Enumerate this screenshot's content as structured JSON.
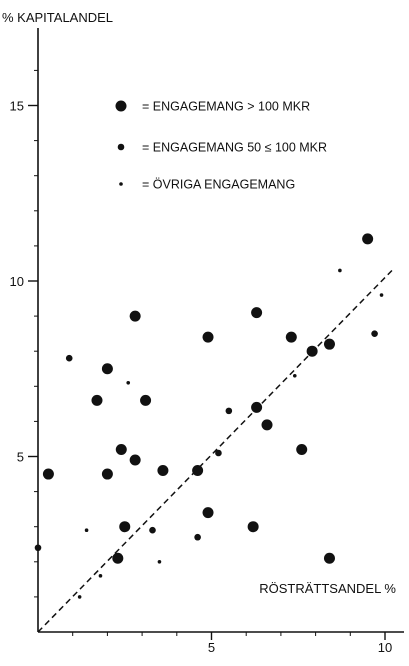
{
  "chart_data": {
    "type": "scatter",
    "ylabel": "% KAPITALANDEL",
    "xlabel": "RÖSTRÄTTSANDEL %",
    "xlim": [
      0,
      10.2
    ],
    "ylim": [
      0,
      17
    ],
    "x_ticks": [
      5,
      10
    ],
    "y_ticks": [
      5,
      10,
      15
    ],
    "grid": false,
    "reference_line": {
      "style": "dashed",
      "from": [
        0,
        0
      ],
      "to": [
        10.2,
        10.3
      ]
    },
    "legend": {
      "placement": "top-right",
      "entries": [
        {
          "size": "large",
          "label": "= ENGAGEMANG > 100 MKR"
        },
        {
          "size": "medium",
          "label": "= ENGAGEMANG 50 ≤ 100 MKR"
        },
        {
          "size": "small",
          "label": "= ÖVRIGA ENGAGEMANG"
        }
      ]
    },
    "series": [
      {
        "size": "large",
        "points": [
          [
            9.5,
            11.2
          ],
          [
            6.3,
            9.1
          ],
          [
            2.8,
            9.0
          ],
          [
            7.3,
            8.4
          ],
          [
            4.9,
            8.4
          ],
          [
            2.0,
            7.5
          ],
          [
            7.9,
            8.0
          ],
          [
            8.4,
            8.2
          ],
          [
            1.7,
            6.6
          ],
          [
            3.1,
            6.6
          ],
          [
            6.3,
            6.4
          ],
          [
            6.6,
            5.9
          ],
          [
            2.4,
            5.2
          ],
          [
            2.8,
            4.9
          ],
          [
            0.3,
            4.5
          ],
          [
            2.0,
            4.5
          ],
          [
            3.6,
            4.6
          ],
          [
            4.6,
            4.6
          ],
          [
            7.6,
            5.2
          ],
          [
            4.9,
            3.4
          ],
          [
            2.5,
            3.0
          ],
          [
            6.2,
            3.0
          ],
          [
            2.3,
            2.1
          ],
          [
            8.4,
            2.1
          ]
        ]
      },
      {
        "size": "medium",
        "points": [
          [
            0.9,
            7.8
          ],
          [
            0.0,
            2.4
          ],
          [
            5.5,
            6.3
          ],
          [
            5.2,
            5.1
          ],
          [
            3.3,
            2.9
          ],
          [
            4.6,
            2.7
          ],
          [
            9.7,
            8.5
          ]
        ]
      },
      {
        "size": "small",
        "points": [
          [
            8.7,
            10.3
          ],
          [
            7.4,
            7.3
          ],
          [
            2.6,
            7.1
          ],
          [
            1.4,
            2.9
          ],
          [
            1.8,
            1.6
          ],
          [
            1.2,
            1.0
          ],
          [
            3.5,
            2.0
          ],
          [
            9.9,
            9.6
          ]
        ]
      }
    ]
  }
}
